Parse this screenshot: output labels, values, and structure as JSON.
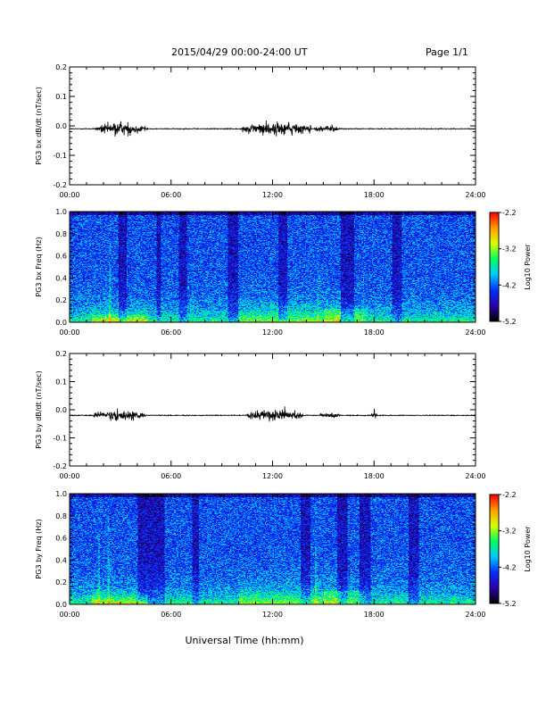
{
  "header": {
    "title": "2015/04/29  00:00-24:00 UT",
    "page": "Page 1/1"
  },
  "footer": {
    "xlabel": "Universal Time (hh:mm)"
  },
  "colors": {
    "trace": "#000000",
    "colormap": [
      "#000000",
      "#2b00b0",
      "#0030ff",
      "#00c8ff",
      "#00ff60",
      "#d8ff00",
      "#ffa000",
      "#ff0000"
    ]
  },
  "chart_data": [
    {
      "type": "line",
      "ylabel": "PG3 bx dB/dt (nT/sec)",
      "xlim": [
        0,
        24
      ],
      "ylim": [
        -0.2,
        0.2
      ],
      "xticks": [
        "00:00",
        "06:00",
        "12:00",
        "18:00",
        "24:00"
      ],
      "yticks": [
        "0.2",
        "0.1",
        "0.0",
        "-0.1",
        "-0.2"
      ],
      "baseline": -0.01,
      "bursts": [
        {
          "start": 1.5,
          "end": 4.6,
          "amplitude": 0.03
        },
        {
          "start": 10.2,
          "end": 14.3,
          "amplitude": 0.04
        },
        {
          "start": 14.5,
          "end": 16.0,
          "amplitude": 0.015
        }
      ]
    },
    {
      "type": "heatmap",
      "ylabel": "PG3 bx Freq (Hz)",
      "xlim": [
        0,
        24
      ],
      "ylim": [
        0.0,
        1.0
      ],
      "xticks": [
        "00:00",
        "06:00",
        "12:00",
        "18:00",
        "24:00"
      ],
      "yticks": [
        "1.0",
        "0.8",
        "0.6",
        "0.4",
        "0.2",
        "0.0"
      ],
      "colorbar": {
        "label": "Log10 Power",
        "range": [
          -5.2,
          -2.2
        ],
        "ticks": [
          "-2.2",
          "-3.2",
          "-4.2",
          "-5.2"
        ]
      }
    },
    {
      "type": "line",
      "ylabel": "PG3 by dB/dt (nT/sec)",
      "xlim": [
        0,
        24
      ],
      "ylim": [
        -0.2,
        0.2
      ],
      "xticks": [
        "00:00",
        "06:00",
        "12:00",
        "18:00",
        "24:00"
      ],
      "yticks": [
        "0.2",
        "0.1",
        "0.0",
        "-0.1",
        "-0.2"
      ],
      "baseline": -0.02,
      "bursts": [
        {
          "start": 1.4,
          "end": 4.5,
          "amplitude": 0.03
        },
        {
          "start": 10.5,
          "end": 13.8,
          "amplitude": 0.035
        },
        {
          "start": 14.8,
          "end": 16.0,
          "amplitude": 0.015
        },
        {
          "start": 17.8,
          "end": 18.2,
          "amplitude": 0.02
        }
      ]
    },
    {
      "type": "heatmap",
      "ylabel": "PG3 by Freq (Hz)",
      "xlim": [
        0,
        24
      ],
      "ylim": [
        0.0,
        1.0
      ],
      "xticks": [
        "00:00",
        "06:00",
        "12:00",
        "18:00",
        "24:00"
      ],
      "yticks": [
        "1.0",
        "0.8",
        "0.6",
        "0.4",
        "0.2",
        "0.0"
      ],
      "colorbar": {
        "label": "Log10 Power",
        "range": [
          -5.2,
          -2.2
        ],
        "ticks": [
          "-2.2",
          "-3.2",
          "-4.2",
          "-5.2"
        ]
      }
    }
  ]
}
